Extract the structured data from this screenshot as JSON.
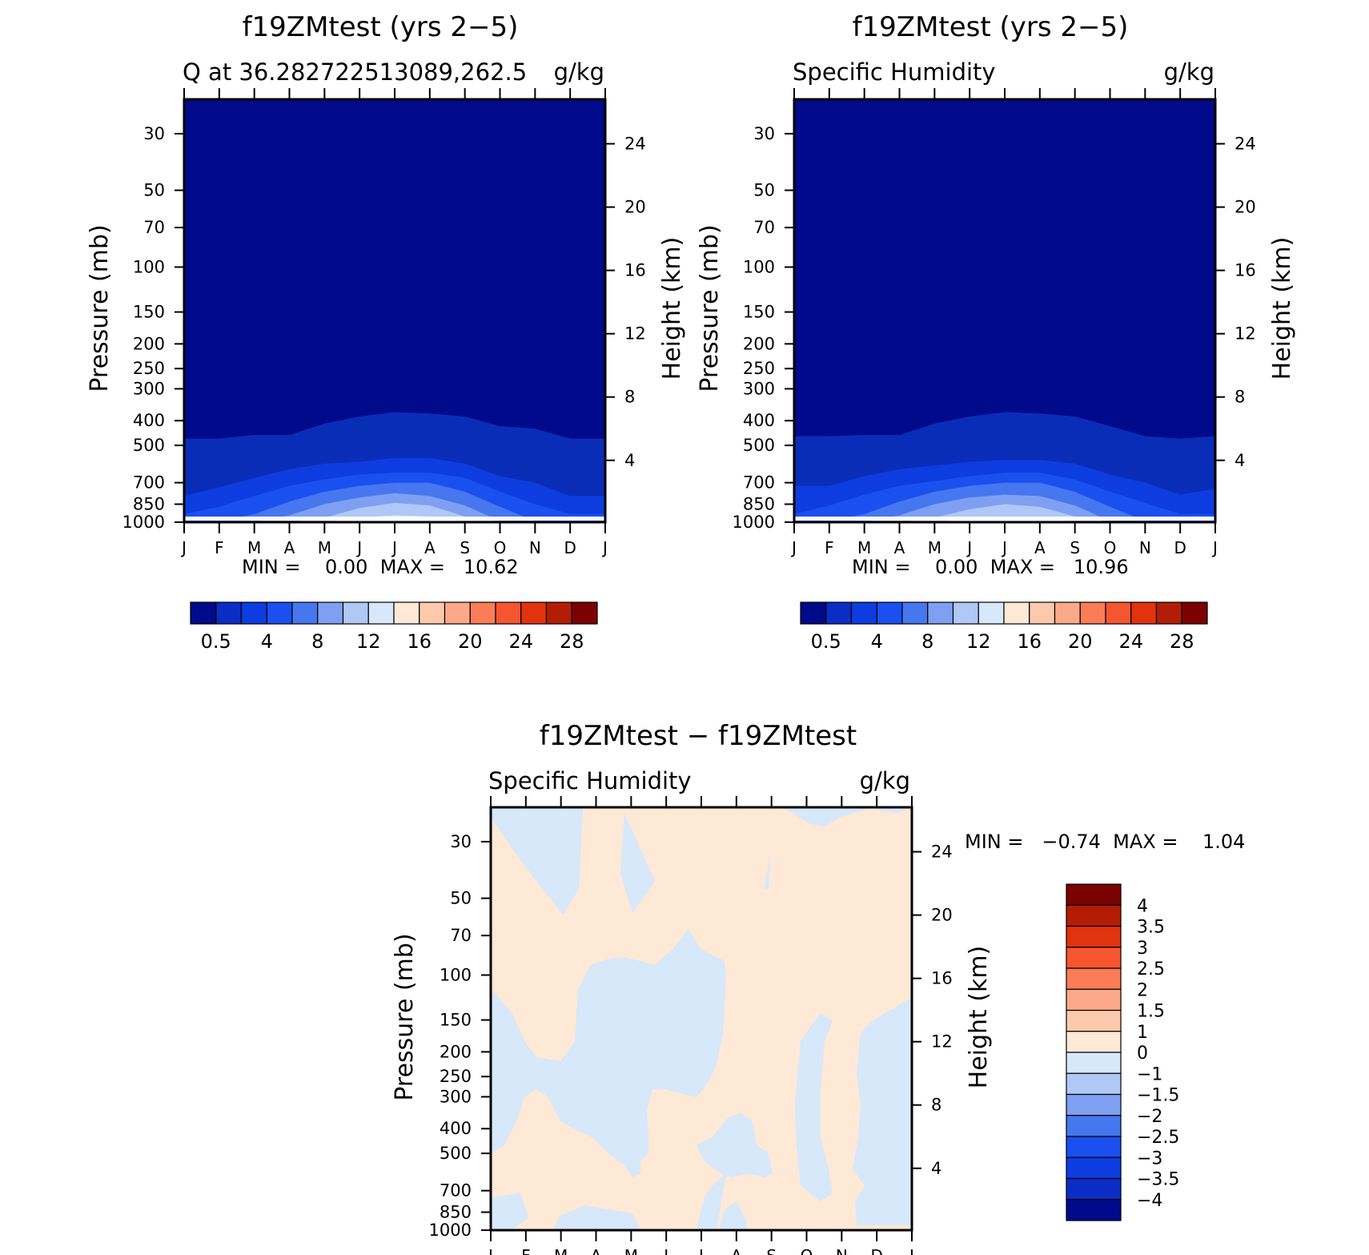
{
  "chart_data": [
    {
      "type": "contour",
      "title": "f19ZMtest (yrs 2−5)",
      "subtitle_left": "Q at 36.2827225130​89,262.5",
      "subtitle_right": "g/kg",
      "ylabel_left": "Pressure (mb)",
      "ylabel_right": "Height (km)",
      "months": [
        "J",
        "F",
        "M",
        "A",
        "M",
        "J",
        "J",
        "A",
        "S",
        "O",
        "N",
        "D",
        "J"
      ],
      "pressure_ticks": [
        "30",
        "50",
        "70",
        "100",
        "150",
        "200",
        "250",
        "300",
        "400",
        "500",
        "700",
        "850",
        "1000"
      ],
      "pressure_values": [
        30,
        50,
        70,
        100,
        150,
        200,
        250,
        300,
        400,
        500,
        700,
        850,
        1000
      ],
      "height_ticks": [
        "24",
        "20",
        "16",
        "12",
        "8",
        "4"
      ],
      "height_values": [
        24,
        20,
        16,
        12,
        8,
        4
      ],
      "minmax": "MIN =    0.00  MAX =   10.62",
      "min": 0.0,
      "max": 10.62,
      "colorbar_labels": [
        "0.5",
        "4",
        "8",
        "12",
        "16",
        "20",
        "24",
        "28"
      ],
      "bands_top_pressure_mb": [
        [
          470,
          470,
          455,
          455,
          410,
          385,
          370,
          375,
          385,
          420,
          430,
          470,
          470
        ],
        [
          790,
          730,
          670,
          620,
          590,
          580,
          560,
          560,
          590,
          660,
          700,
          790,
          790
        ],
        [
          930,
          870,
          790,
          720,
          680,
          650,
          640,
          640,
          670,
          760,
          850,
          930,
          930
        ],
        [
          1000,
          990,
          930,
          830,
          760,
          720,
          700,
          700,
          760,
          870,
          990,
          1000,
          1000
        ],
        [
          1000,
          1000,
          1000,
          940,
          850,
          800,
          770,
          790,
          860,
          990,
          1000,
          1000,
          1000
        ],
        [
          1000,
          1000,
          1000,
          1000,
          960,
          880,
          840,
          860,
          950,
          1000,
          1000,
          1000,
          1000
        ],
        [
          1000,
          1000,
          1000,
          1000,
          1000,
          960,
          940,
          950,
          1000,
          1000,
          1000,
          1000,
          1000
        ]
      ]
    },
    {
      "type": "contour",
      "title": "f19ZMtest (yrs 2−5)",
      "subtitle_left": "Specific Humidity",
      "subtitle_right": "g/kg",
      "ylabel_left": "Pressure (mb)",
      "ylabel_right": "Height (km)",
      "months": [
        "J",
        "F",
        "M",
        "A",
        "M",
        "J",
        "J",
        "A",
        "S",
        "O",
        "N",
        "D",
        "J"
      ],
      "pressure_ticks": [
        "30",
        "50",
        "70",
        "100",
        "150",
        "200",
        "250",
        "300",
        "400",
        "500",
        "700",
        "850",
        "1000"
      ],
      "pressure_values": [
        30,
        50,
        70,
        100,
        150,
        200,
        250,
        300,
        400,
        500,
        700,
        850,
        1000
      ],
      "height_ticks": [
        "24",
        "20",
        "16",
        "12",
        "8",
        "4"
      ],
      "height_values": [
        24,
        20,
        16,
        12,
        8,
        4
      ],
      "minmax": "MIN =    0.00  MAX =   10.96",
      "min": 0.0,
      "max": 10.96,
      "colorbar_labels": [
        "0.5",
        "4",
        "8",
        "12",
        "16",
        "20",
        "24",
        "28"
      ],
      "bands_top_pressure_mb": [
        [
          460,
          460,
          455,
          455,
          410,
          385,
          370,
          375,
          385,
          420,
          460,
          470,
          460
        ],
        [
          720,
          720,
          660,
          620,
          600,
          580,
          570,
          570,
          590,
          650,
          700,
          780,
          740
        ],
        [
          930,
          860,
          780,
          720,
          690,
          660,
          640,
          640,
          680,
          760,
          840,
          930,
          930
        ],
        [
          1000,
          990,
          930,
          830,
          760,
          720,
          700,
          700,
          760,
          870,
          990,
          1000,
          1000
        ],
        [
          1000,
          1000,
          1000,
          940,
          850,
          800,
          780,
          790,
          860,
          990,
          1000,
          1000,
          1000
        ],
        [
          1000,
          1000,
          1000,
          1000,
          960,
          890,
          850,
          870,
          950,
          1000,
          1000,
          1000,
          1000
        ],
        [
          1000,
          1000,
          1000,
          1000,
          1000,
          970,
          950,
          960,
          1000,
          1000,
          1000,
          1000,
          1000
        ]
      ]
    },
    {
      "type": "contour",
      "title": "f19ZMtest − f19ZMtest",
      "subtitle_left": "Specific Humidity",
      "subtitle_right": "g/kg",
      "ylabel_left": "Pressure (mb)",
      "ylabel_right": "Height (km)",
      "months": [
        "J",
        "F",
        "M",
        "A",
        "M",
        "J",
        "J",
        "A",
        "S",
        "O",
        "N",
        "D",
        "J"
      ],
      "pressure_ticks": [
        "30",
        "50",
        "70",
        "100",
        "150",
        "200",
        "250",
        "300",
        "400",
        "500",
        "700",
        "850",
        "1000"
      ],
      "pressure_values": [
        30,
        50,
        70,
        100,
        150,
        200,
        250,
        300,
        400,
        500,
        700,
        850,
        1000
      ],
      "height_ticks": [
        "24",
        "20",
        "16",
        "12",
        "8",
        "4"
      ],
      "height_values": [
        24,
        20,
        16,
        12,
        8,
        4
      ],
      "minmax": "MIN =   −0.74  MAX =    1.04",
      "min": -0.74,
      "max": 1.04,
      "colorbar_labels": [
        "4",
        "3.5",
        "3",
        "2.5",
        "2",
        "1.5",
        "1",
        "0",
        "−1",
        "−1.5",
        "−2",
        "−2.5",
        "−3",
        "−3.5",
        "−4"
      ],
      "contour_levels": [
        -4,
        -3.5,
        -3,
        -2.5,
        -2,
        -1.5,
        -1,
        0,
        1,
        1.5,
        2,
        2.5,
        3,
        3.5,
        4
      ],
      "negative_color": "#d6e8fa",
      "positive_color": "#fee8d6"
    }
  ],
  "colors": {
    "seq_colorbar": [
      "#000a8a",
      "#0a2dc6",
      "#0d3de0",
      "#1a50f0",
      "#4677ef",
      "#7fa0f2",
      "#b0c8f6",
      "#d6e8fa",
      "#fee8d6",
      "#fdc9ad",
      "#fca98a",
      "#fa7d58",
      "#f65531",
      "#e0330e",
      "#b41d05",
      "#7c0202"
    ],
    "diff_colorbar": [
      "#7c0202",
      "#b41d05",
      "#e0330e",
      "#f65531",
      "#fa7d58",
      "#fca98a",
      "#fdc9ad",
      "#fee8d6",
      "#d6e8fa",
      "#b0c8f6",
      "#7fa0f2",
      "#4677ef",
      "#1a50f0",
      "#0d3de0",
      "#0a2dc6",
      "#000a8a"
    ],
    "humidity_bands": [
      "#000a8a",
      "#0a2db8",
      "#0d3de0",
      "#1a50f0",
      "#4677ef",
      "#7fa0f2",
      "#b0c8f6",
      "#d6e8fa"
    ]
  }
}
